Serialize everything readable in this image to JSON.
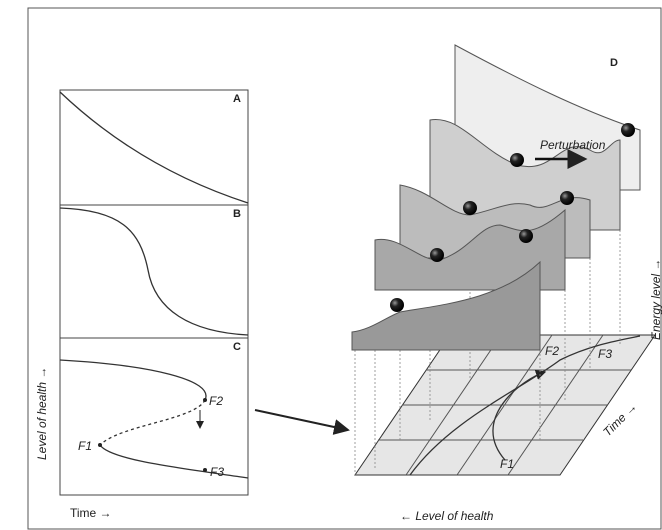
{
  "panels": {
    "a": {
      "label": "A"
    },
    "b": {
      "label": "B"
    },
    "c": {
      "label": "C",
      "points": [
        "F1",
        "F2",
        "F3"
      ]
    },
    "d": {
      "label": "D",
      "annotation": "Perturbation",
      "points": [
        "F1",
        "F2",
        "F3"
      ]
    }
  },
  "axes": {
    "left_y": "Level of health →",
    "left_x": "Time →",
    "right_x": "← Level of health",
    "right_time": "Time →",
    "right_energy": "Energy level →"
  }
}
